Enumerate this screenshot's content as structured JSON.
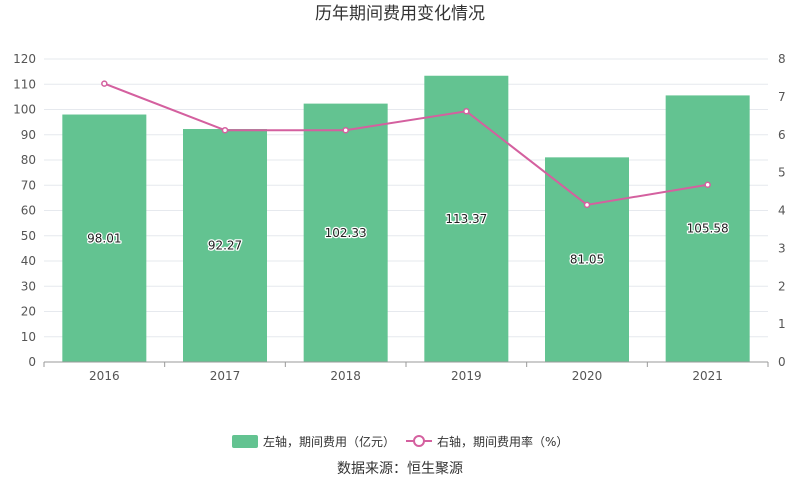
{
  "title": "历年期间费用变化情况",
  "source": "数据来源：恒生聚源",
  "legend": {
    "bar_label": "左轴，期间费用（亿元）",
    "line_label": "右轴，期间费用率（%）"
  },
  "colors": {
    "bar": "#63c391",
    "line": "#d4609f",
    "grid": "#e6e9ee",
    "axis": "#999999"
  },
  "chart_data": {
    "type": "bar",
    "categories": [
      "2016",
      "2017",
      "2018",
      "2019",
      "2020",
      "2021"
    ],
    "series": [
      {
        "name": "左轴，期间费用（亿元）",
        "type": "bar",
        "axis": "left",
        "values": [
          98.01,
          92.27,
          102.33,
          113.37,
          81.05,
          105.58
        ]
      },
      {
        "name": "右轴，期间费用率（%）",
        "type": "line",
        "axis": "right",
        "values": [
          7.35,
          6.12,
          6.12,
          6.62,
          4.15,
          4.68
        ]
      }
    ],
    "bar_labels": [
      "98.01",
      "92.27",
      "102.33",
      "113.37",
      "81.05",
      "105.58"
    ],
    "y_left": {
      "min": 0,
      "max": 120,
      "ticks": [
        "0",
        "10",
        "20",
        "30",
        "40",
        "50",
        "60",
        "70",
        "80",
        "90",
        "100",
        "110",
        "120"
      ]
    },
    "y_right": {
      "min": 0,
      "max": 8,
      "ticks": [
        "0",
        "1",
        "2",
        "3",
        "4",
        "5",
        "6",
        "7",
        "8"
      ]
    },
    "grid": true,
    "legend_position": "bottom"
  }
}
